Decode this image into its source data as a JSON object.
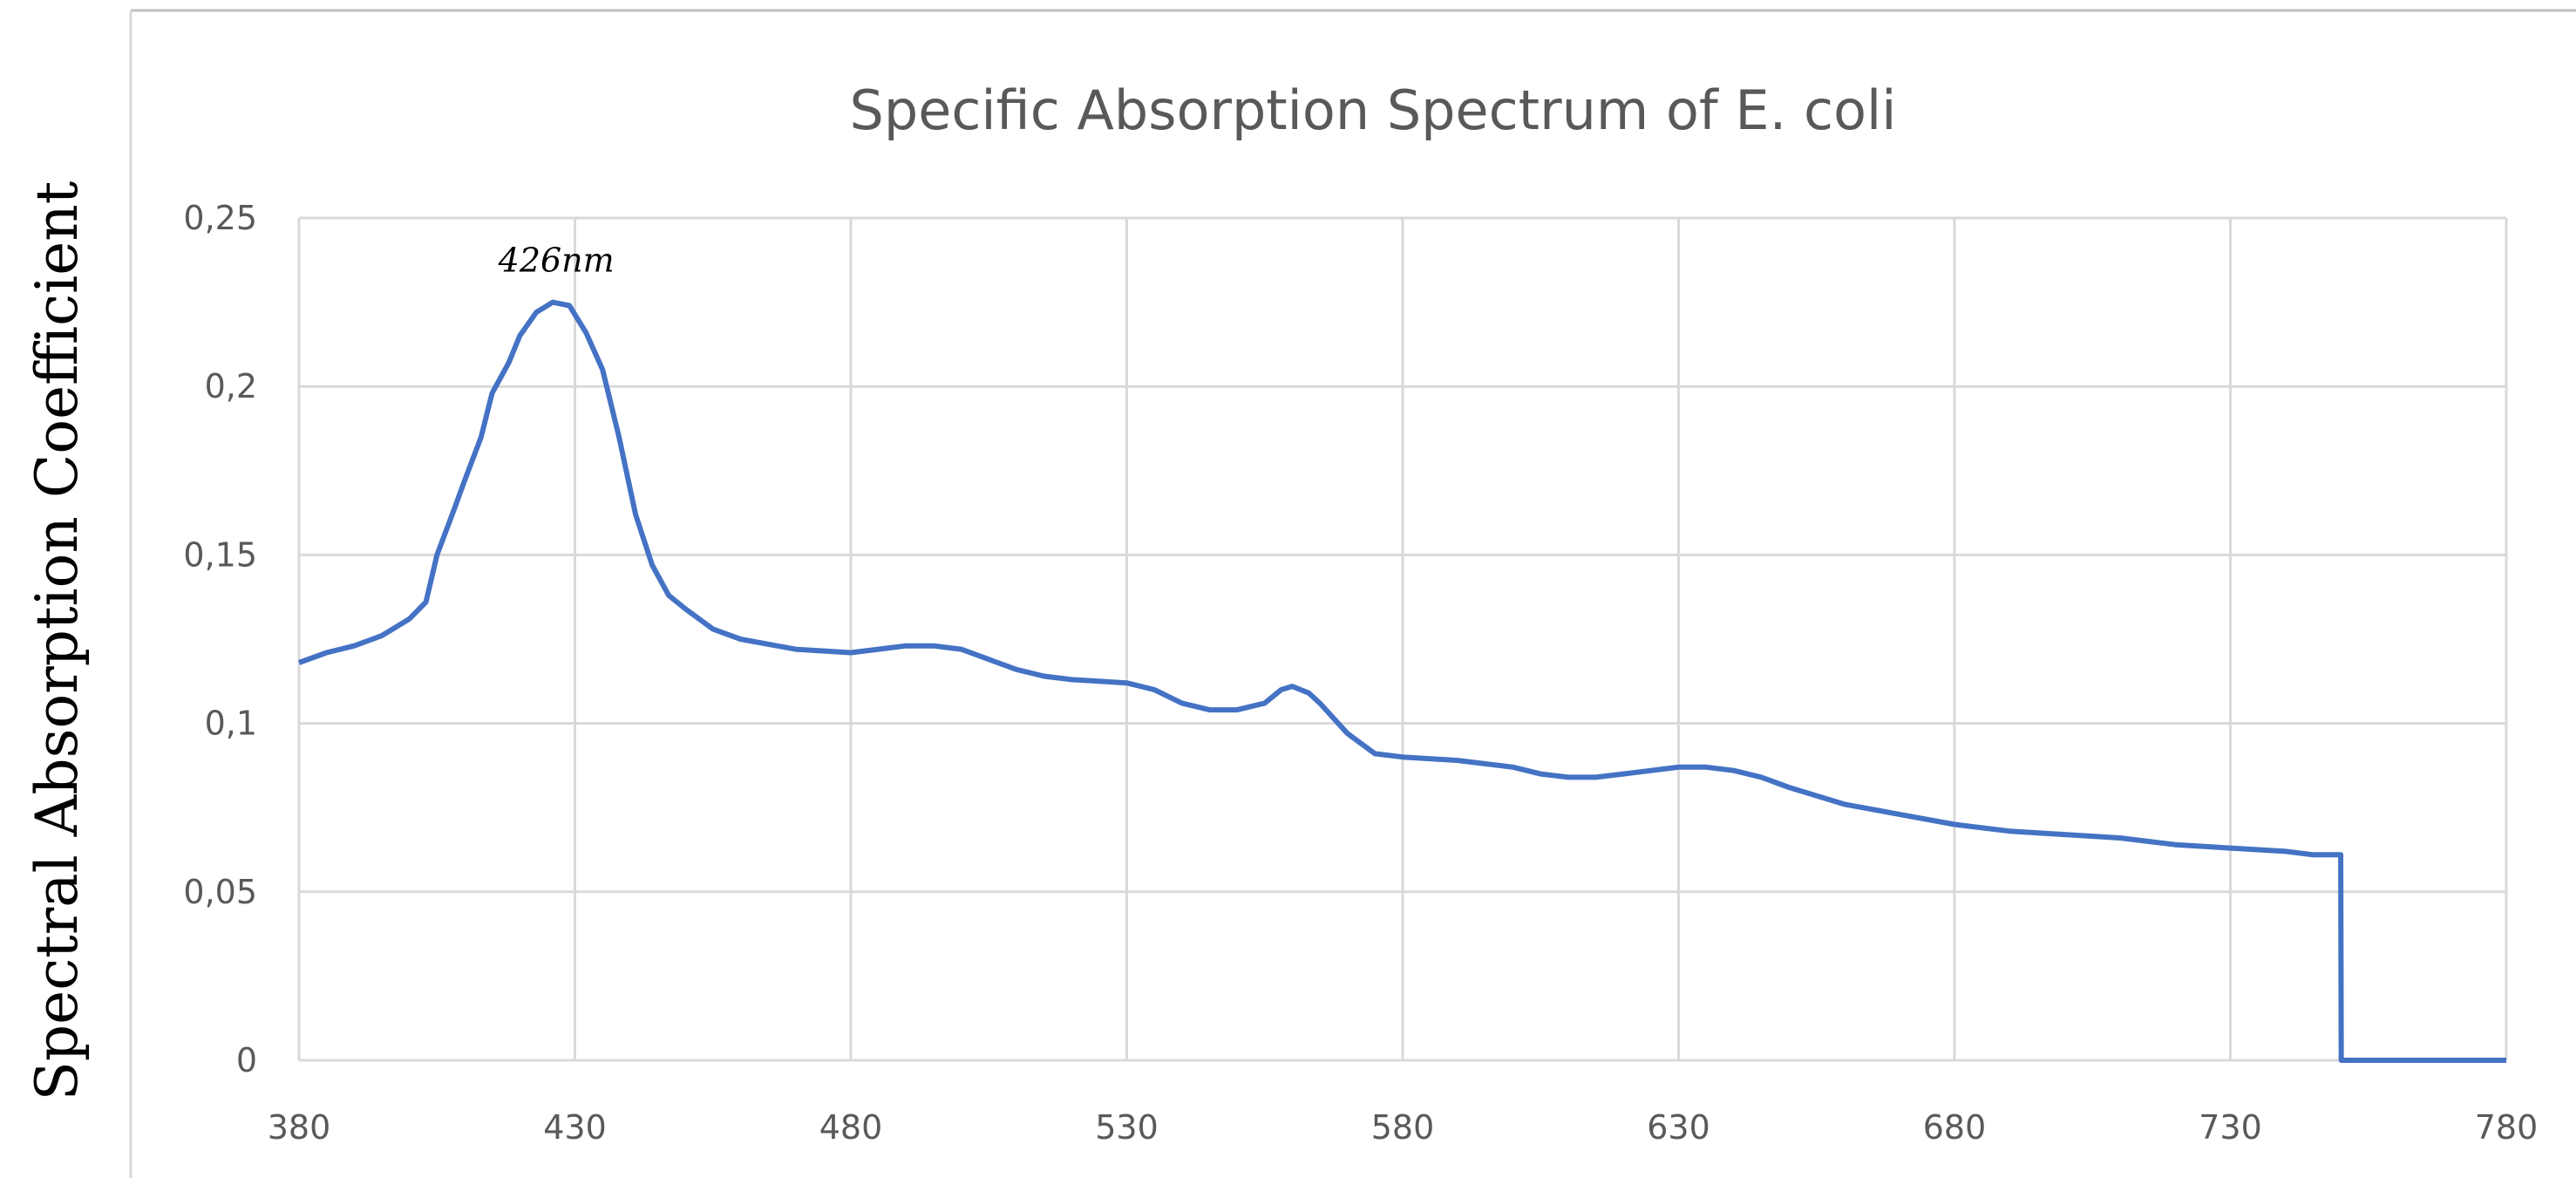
{
  "chart_data": {
    "type": "line",
    "title": "Specific Absorption Spectrum of E. coli",
    "xlabel": "",
    "ylabel": "Spectral Absorption Coefficient",
    "xlim": [
      380,
      780
    ],
    "ylim": [
      0,
      0.25
    ],
    "x_ticks": [
      380,
      430,
      480,
      530,
      580,
      630,
      680,
      730,
      780
    ],
    "x_tick_labels": [
      "380",
      "430",
      "480",
      "530",
      "580",
      "630",
      "680",
      "730",
      "780"
    ],
    "y_ticks": [
      0,
      0.05,
      0.1,
      0.15,
      0.2,
      0.25
    ],
    "y_tick_labels": [
      "0",
      "0,05",
      "0,1",
      "0,15",
      "0,2",
      "0,25"
    ],
    "grid": true,
    "line_color": "#4472c4",
    "series": [
      {
        "x": [
          380,
          385,
          390,
          395,
          400,
          403,
          405,
          408,
          410,
          413,
          415,
          418,
          420,
          423,
          426,
          429,
          432,
          435,
          438,
          441,
          444,
          447,
          450,
          455,
          460,
          470,
          480,
          485,
          490,
          495,
          500,
          505,
          510,
          515,
          520,
          530,
          535,
          540,
          545,
          550,
          555,
          558,
          560,
          563,
          565,
          570,
          575,
          580,
          590,
          600,
          605,
          610,
          615,
          620,
          625,
          630,
          635,
          640,
          645,
          650,
          660,
          670,
          680,
          690,
          700,
          710,
          720,
          730,
          740,
          745,
          750,
          750.1,
          760,
          770,
          780
        ],
        "y": [
          0.118,
          0.121,
          0.123,
          0.126,
          0.131,
          0.136,
          0.15,
          0.163,
          0.172,
          0.185,
          0.198,
          0.207,
          0.215,
          0.222,
          0.225,
          0.224,
          0.216,
          0.205,
          0.185,
          0.162,
          0.147,
          0.138,
          0.134,
          0.128,
          0.125,
          0.122,
          0.121,
          0.122,
          0.123,
          0.123,
          0.122,
          0.119,
          0.116,
          0.114,
          0.113,
          0.112,
          0.11,
          0.106,
          0.104,
          0.104,
          0.106,
          0.11,
          0.111,
          0.109,
          0.106,
          0.097,
          0.091,
          0.09,
          0.089,
          0.087,
          0.085,
          0.084,
          0.084,
          0.085,
          0.086,
          0.087,
          0.087,
          0.086,
          0.084,
          0.081,
          0.076,
          0.073,
          0.07,
          0.068,
          0.067,
          0.066,
          0.064,
          0.063,
          0.062,
          0.061,
          0.061,
          0,
          0,
          0,
          0
        ]
      }
    ],
    "annotations": [
      {
        "text": "426nm",
        "x": 426,
        "y": 0.225
      }
    ]
  }
}
